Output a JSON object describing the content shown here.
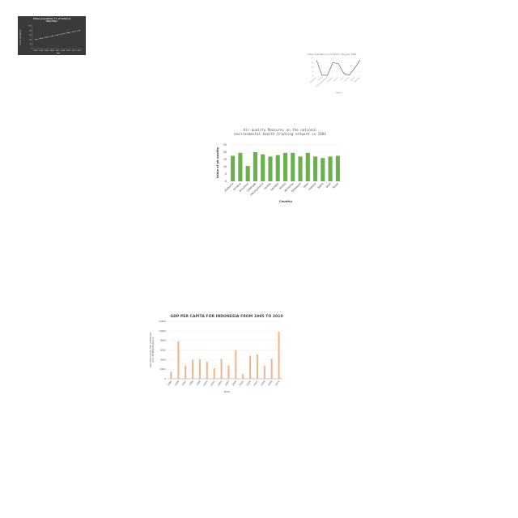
{
  "chart_data": [
    {
      "type": "line",
      "title": "Urban population (% of total) in Mauritius",
      "xlabel": "Year",
      "ylabel": "Urban population",
      "x": [
        "2003",
        "2004",
        "2005",
        "2006",
        "2007",
        "2008",
        "2009",
        "2010",
        "2011"
      ],
      "series": [
        {
          "values": [
            40,
            45,
            50,
            55,
            60,
            65,
            70,
            75,
            80
          ]
        }
      ],
      "ylim": [
        0,
        100
      ],
      "yticks": [
        "0",
        "20",
        "40",
        "60",
        "80",
        "100"
      ],
      "colors": {
        "background": "#3a3a3a",
        "line": "#cfcfcf",
        "text": "#dddddd"
      },
      "grid": false
    },
    {
      "type": "line",
      "title": "Urban population (% of total) in the year 1984",
      "xlabel": "Country",
      "ylabel": "",
      "categories": [
        "Afghanistan",
        "Angola",
        "Antigua and Barbuda",
        "Argentina",
        "Armenia",
        "Aruba",
        "Australia",
        "Austria",
        "Azerbaijan"
      ],
      "series": [
        {
          "values": [
            18,
            1,
            1,
            15,
            14,
            3,
            1,
            9,
            18
          ]
        }
      ],
      "ylim": [
        0,
        20
      ],
      "yticks": [
        "0",
        "5",
        "10",
        "15",
        "20"
      ],
      "colors": {
        "line": "#555555",
        "text": "#777777"
      },
      "grid": true
    },
    {
      "type": "bar",
      "title": "Air quality Measures on the national environmental health tracking network in 1984",
      "xlabel": "Country",
      "ylabel": "Value of air quality",
      "categories": [
        "Alabama",
        "Arizona",
        "Arkansas",
        "Colorado",
        "Pennsylvania",
        "Florida",
        "Georgia",
        "Illinois",
        "Kentucky",
        "Delaware",
        "Iowa",
        "Indiana",
        "Idaho",
        "Utah",
        "Texas"
      ],
      "values": [
        17.5,
        19.5,
        10.5,
        20,
        18.5,
        17,
        18,
        19.5,
        19.5,
        17,
        19.5,
        17,
        16,
        17,
        17.5
      ],
      "ylim": [
        0,
        25
      ],
      "yticks": [
        "0",
        "5",
        "10",
        "15",
        "20",
        "25"
      ],
      "colors": {
        "bar": "#6ab04c",
        "text": "#333333",
        "title": "#555555"
      },
      "grid": true
    },
    {
      "type": "bar",
      "title": "GDP PER CAPITA FOR INDONESIA FROM 1995 TO 2010",
      "xlabel": "YEAR",
      "ylabel": "GDP PER CAPITA, PPP (CONSTANT 2017 INTERNATIONAL $)",
      "categories": [
        "1995",
        "1996",
        "1997",
        "1998",
        "1999",
        "2000",
        "2001",
        "2002",
        "2003",
        "2004",
        "2005",
        "2006",
        "2007",
        "2008",
        "2009",
        "2010"
      ],
      "values": [
        1500,
        7800,
        2800,
        4000,
        4100,
        3600,
        2200,
        4200,
        2800,
        6000,
        1000,
        4800,
        5100,
        2700,
        4200,
        9800
      ],
      "ylim": [
        0,
        12000
      ],
      "yticks": [
        "0",
        "2000",
        "4000",
        "6000",
        "8000",
        "10000",
        "12000"
      ],
      "colors": {
        "bar": "#f4b183",
        "text": "#555555",
        "title": "#444444"
      },
      "grid": true
    }
  ]
}
